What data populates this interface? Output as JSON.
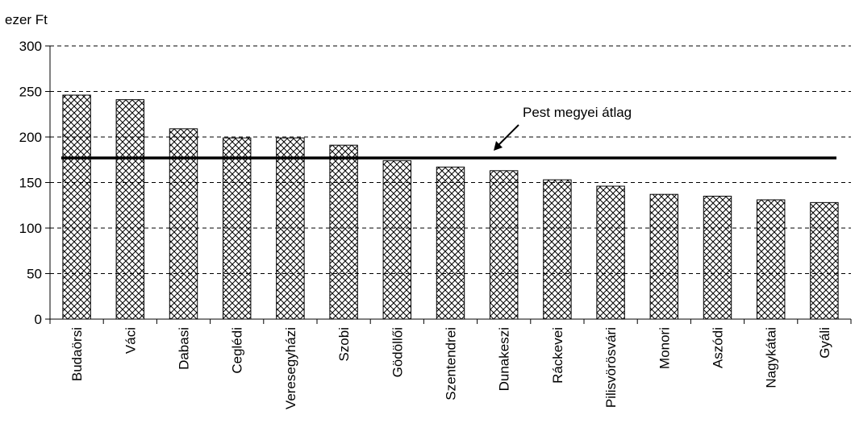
{
  "chart_data": {
    "type": "bar",
    "unit_label": "ezer Ft",
    "categories": [
      "Budaörsi",
      "Váci",
      "Dabasi",
      "Ceglédi",
      "Veresegyházi",
      "Szobi",
      "Gödöllői",
      "Szentendrei",
      "Dunakeszi",
      "Ráckevei",
      "Pilisvörösvári",
      "Monori",
      "Aszódi",
      "Nagykátai",
      "Gyáli"
    ],
    "values": [
      246,
      241,
      209,
      199,
      199,
      191,
      174,
      167,
      163,
      153,
      146,
      137,
      135,
      131,
      128
    ],
    "ylim": [
      0,
      300
    ],
    "yticks": [
      0,
      50,
      100,
      150,
      200,
      250,
      300
    ],
    "grid": true,
    "bar_fill": "crosshatch",
    "reference_line": {
      "label": "Pest megyei átlag",
      "value": 177
    },
    "colors": {
      "bar_stroke": "#000000",
      "hatch": "#000000",
      "background": "#ffffff",
      "grid": "#000000"
    }
  }
}
